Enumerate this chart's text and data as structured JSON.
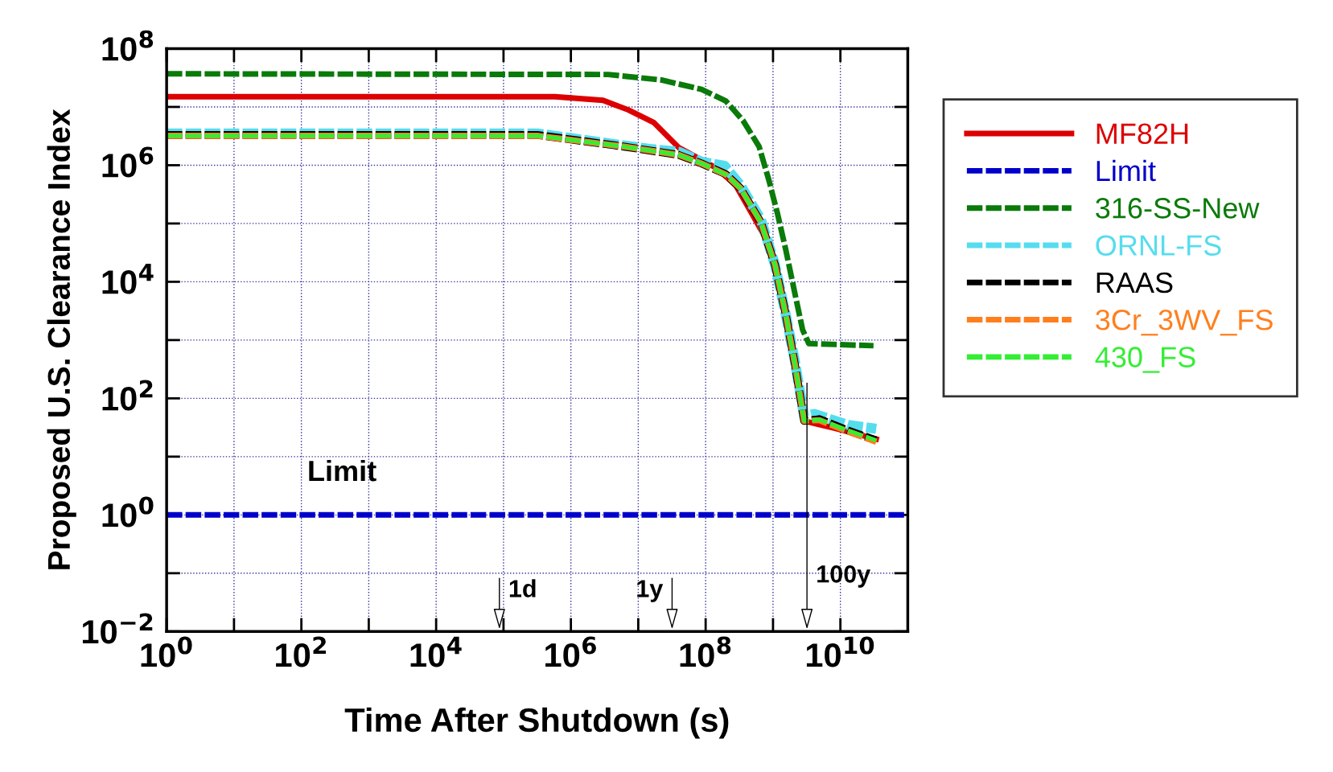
{
  "chart_data": {
    "type": "line",
    "xlabel": "Time After Shutdown (s)",
    "ylabel": "Proposed U.S. Clearance Index",
    "log": "xy",
    "grid": true,
    "legend": "right",
    "xlim": [
      1,
      100000000000.0
    ],
    "ylim": [
      0.01,
      100000000.0
    ],
    "xticks": [
      {
        "value": 1,
        "label": "10$^{0}$"
      },
      {
        "value": 10,
        "label": null
      },
      {
        "value": 100,
        "label": "10$^{2}$"
      },
      {
        "value": 1000,
        "label": null
      },
      {
        "value": 10000,
        "label": "10$^{4}$"
      },
      {
        "value": 100000,
        "label": null
      },
      {
        "value": 1000000,
        "label": "10$^{6}$"
      },
      {
        "value": 10000000,
        "label": null
      },
      {
        "value": 100000000,
        "label": "10$^{8}$"
      },
      {
        "value": 1000000000,
        "label": null
      },
      {
        "value": 10000000000,
        "label": "10$^{10}$"
      }
    ],
    "yticks": [
      {
        "value": 0.01,
        "label": "10$^{−2}$"
      },
      {
        "value": 0.1,
        "label": null
      },
      {
        "value": 1,
        "label": "10$^{0}$"
      },
      {
        "value": 10,
        "label": null
      },
      {
        "value": 100,
        "label": "10$^{2}$"
      },
      {
        "value": 1000,
        "label": null
      },
      {
        "value": 10000,
        "label": "10$^{4}$"
      },
      {
        "value": 100000,
        "label": null
      },
      {
        "value": 1000000,
        "label": "10$^{6}$"
      },
      {
        "value": 10000000,
        "label": null
      },
      {
        "value": 100000000,
        "label": "10$^{8}$"
      }
    ],
    "series": [
      {
        "name": "MF82H",
        "color": "#dd0000",
        "line_style": "solid",
        "x": [
          1,
          580000.0,
          3000000.0,
          7100000.0,
          17000000.0,
          40000000.0,
          71000000.0,
          150000000.0,
          280000000.0,
          490000000.0,
          790000000.0,
          1070000000.0,
          1550000000.0,
          1900000000.0,
          2900000000.0,
          7900000000.0,
          34000000000.0
        ],
        "values": [
          15000000.0,
          15000000.0,
          13000000.0,
          8900000.0,
          5400000.0,
          2000000.0,
          1400000.0,
          870000.0,
          450000.0,
          145000.0,
          54000.0,
          19500.0,
          3300.0,
          980,
          41,
          31,
          20
        ]
      },
      {
        "name": "Limit",
        "color": "#0000cc",
        "line_style": "dashed",
        "x": [
          1,
          100000000000.0
        ],
        "values": [
          1,
          1
        ]
      },
      {
        "name": "316-SS-New",
        "color": "#0a7a0a",
        "line_style": "dashed",
        "x": [
          1,
          3600000.0,
          22000000.0,
          87000000.0,
          200000000.0,
          360000000.0,
          620000000.0,
          870000000.0,
          1170000000.0,
          1550000000.0,
          2100000000.0,
          2750000000.0,
          3400000000.0,
          31000000000.0
        ],
        "values": [
          37000000.0,
          36000000.0,
          29000000.0,
          20000000.0,
          12600000.0,
          5800000.0,
          2100000.0,
          550000.0,
          145000.0,
          35000.0,
          6500.0,
          1500.0,
          870,
          800
        ]
      },
      {
        "name": "ORNL-FS",
        "color": "#55ddee",
        "line_style": "dashed",
        "x": [
          1,
          320000.0,
          5900000.0,
          15000000.0,
          40000000.0,
          87000000.0,
          190000000.0,
          330000000.0,
          660000000.0,
          1070000000.0,
          1550000000.0,
          2100000000.0,
          2900000000.0,
          4100000000.0,
          13000000000.0,
          34000000000.0
        ],
        "values": [
          3500000.0,
          3500000.0,
          2200000.0,
          1900000.0,
          1700000.0,
          1150000.0,
          980000.0,
          450000.0,
          117000.0,
          19500.0,
          2700.0,
          450,
          49,
          54,
          35,
          30
        ]
      },
      {
        "name": "RAAS",
        "color": "#000000",
        "line_style": "dashed",
        "x": [
          1,
          320000.0,
          5900000.0,
          40000000.0,
          87000000.0,
          200000000.0,
          330000000.0,
          660000000.0,
          1070000000.0,
          1550000000.0,
          2100000000.0,
          2900000000.0,
          4900000000.0,
          13000000000.0,
          34000000000.0
        ],
        "values": [
          3300000.0,
          3300000.0,
          2100000.0,
          1500000.0,
          1070000.0,
          700000.0,
          400000.0,
          105000.0,
          19500.0,
          2700.0,
          400,
          41,
          44,
          28,
          19
        ]
      },
      {
        "name": "3Cr_3WV_FS",
        "color": "#ff7f1e",
        "line_style": "dashed",
        "x": [
          1,
          320000.0,
          5900000.0,
          40000000.0,
          87000000.0,
          200000000.0,
          330000000.0,
          660000000.0,
          1070000000.0,
          1550000000.0,
          2100000000.0,
          2900000000.0,
          4900000000.0,
          13000000000.0,
          34000000000.0
        ],
        "values": [
          3200000.0,
          3200000.0,
          2100000.0,
          1500000.0,
          1070000.0,
          690000.0,
          400000.0,
          105000.0,
          19500.0,
          2700.0,
          400,
          41,
          42,
          27,
          18
        ]
      },
      {
        "name": "430_FS",
        "color": "#33ee33",
        "line_style": "dashed",
        "x": [
          1,
          320000.0,
          5900000.0,
          40000000.0,
          87000000.0,
          200000000.0,
          330000000.0,
          660000000.0,
          1070000000.0,
          1550000000.0,
          2100000000.0,
          2900000000.0,
          4900000000.0,
          13000000000.0,
          34000000000.0
        ],
        "values": [
          3200000.0,
          3200000.0,
          2100000.0,
          1500000.0,
          1070000.0,
          690000.0,
          400000.0,
          105000.0,
          19500.0,
          2700.0,
          400,
          41,
          43,
          28,
          19
        ]
      }
    ],
    "annotations": [
      {
        "text": "Limit",
        "x": 400,
        "y": 1
      },
      "1d",
      "1y",
      "100y"
    ]
  }
}
